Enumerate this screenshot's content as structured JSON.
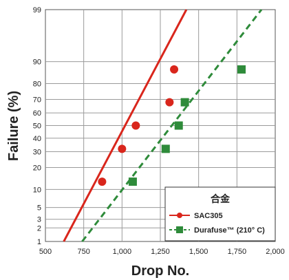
{
  "chart_data": {
    "type": "scatter",
    "xlabel": "Drop No.",
    "ylabel": "Failure (%)",
    "x_scale": "linear",
    "y_scale": "probability",
    "xlim": [
      500,
      2000
    ],
    "ylim": [
      1,
      99
    ],
    "x_ticks": [
      "500",
      "750",
      "1,000",
      "1,250",
      "1,500",
      "1,750",
      "2,000"
    ],
    "x_tick_values": [
      500,
      750,
      1000,
      1250,
      1500,
      1750,
      2000
    ],
    "y_ticks": [
      "1",
      "2",
      "3",
      "5",
      "10",
      "20",
      "30",
      "40",
      "50",
      "60",
      "70",
      "80",
      "90",
      "99"
    ],
    "y_tick_values": [
      1,
      2,
      3,
      5,
      10,
      20,
      30,
      40,
      50,
      60,
      70,
      80,
      90,
      99
    ],
    "grid": true,
    "legend_title": "合金",
    "legend_position": "bottom-right",
    "series": [
      {
        "name": "SAC305",
        "marker": "circle",
        "line_style": "solid",
        "color": "#d9261c",
        "points": [
          {
            "x": 870,
            "y": 13
          },
          {
            "x": 1000,
            "y": 32
          },
          {
            "x": 1090,
            "y": 50
          },
          {
            "x": 1310,
            "y": 68
          },
          {
            "x": 1340,
            "y": 87
          }
        ],
        "fit_line": [
          {
            "x": 620,
            "y": 1
          },
          {
            "x": 1420,
            "y": 99
          }
        ]
      },
      {
        "name": "Durafuse™ (210° C)",
        "marker": "square",
        "line_style": "dashed",
        "color": "#2e8b3a",
        "points": [
          {
            "x": 1070,
            "y": 13
          },
          {
            "x": 1285,
            "y": 32
          },
          {
            "x": 1370,
            "y": 50
          },
          {
            "x": 1410,
            "y": 68
          },
          {
            "x": 1780,
            "y": 87
          }
        ],
        "fit_line": [
          {
            "x": 740,
            "y": 1
          },
          {
            "x": 1910,
            "y": 99
          }
        ]
      }
    ]
  }
}
